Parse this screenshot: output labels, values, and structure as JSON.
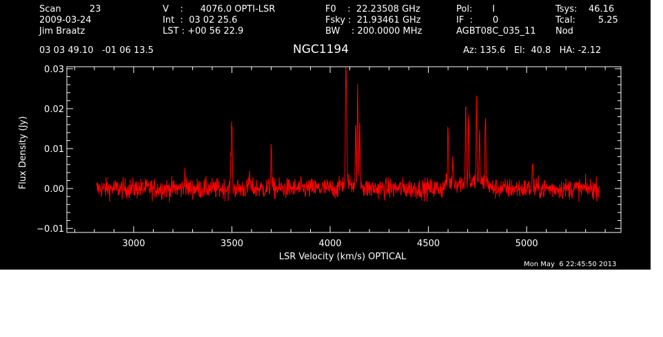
{
  "header": {
    "col1": [
      "Scan          23",
      "2009-03-24",
      "Jim Braatz"
    ],
    "col2": [
      "V    :      4076.0 OPTI-LSR",
      "Int  :  03 02 25.6",
      "LST : +00 56 22.9"
    ],
    "col3": [
      "F0    :  22.23508 GHz",
      "Fsky :  21.93461 GHz",
      "BW    : 200.0000 MHz"
    ],
    "col4": [
      "Pol:       I",
      "IF  :       0",
      "AGBT08C_035_11"
    ],
    "col5": [
      "Tsys:    46.16",
      "Tcal:        5.25",
      "Nod"
    ],
    "coords": "03 03 49.10   -01 06 13.5",
    "source": "NGC1194",
    "pointing": "Az: 135.6   El:  40.8   HA: -2.12",
    "timestamp": "Mon May  6 22:45:50 2013"
  },
  "colors": {
    "background": "#000000",
    "axes": "#ffffff",
    "trace": "#ff0000"
  },
  "chart_data": {
    "type": "line",
    "xlabel": "LSR Velocity (km/s) OPTICAL",
    "ylabel": "Flux Density (Jy)",
    "xlim": [
      2660,
      5480
    ],
    "ylim": [
      -0.011,
      0.0305
    ],
    "xticks": [
      3000,
      3500,
      4000,
      4500,
      5000
    ],
    "xtick_labels": [
      "3000",
      "3500",
      "4000",
      "4500",
      "5000"
    ],
    "yticks": [
      -0.01,
      0.0,
      0.01,
      0.02,
      0.03
    ],
    "ytick_labels": [
      "−0.01",
      "0.00",
      "0.01",
      "0.02",
      "0.03"
    ],
    "grid": false,
    "series": [
      {
        "x_range": [
          2810,
          5370
        ],
        "noise_rms": 0.0013,
        "features": [
          {
            "x": 3260,
            "peak": 0.004
          },
          {
            "x": 3495,
            "peak": 0.007
          },
          {
            "x": 3500,
            "peak": 0.0165
          },
          {
            "x": 3590,
            "peak": 0.004
          },
          {
            "x": 3700,
            "peak": 0.012
          },
          {
            "x": 4080,
            "peak": 0.029
          },
          {
            "x": 4085,
            "peak": 0.012
          },
          {
            "x": 4130,
            "peak": 0.014
          },
          {
            "x": 4140,
            "peak": 0.023
          },
          {
            "x": 4150,
            "peak": 0.0145
          },
          {
            "x": 4600,
            "peak": 0.0135
          },
          {
            "x": 4625,
            "peak": 0.006
          },
          {
            "x": 4690,
            "peak": 0.0195
          },
          {
            "x": 4705,
            "peak": 0.018
          },
          {
            "x": 4745,
            "peak": 0.0215
          },
          {
            "x": 4760,
            "peak": 0.012
          },
          {
            "x": 4790,
            "peak": 0.0175
          },
          {
            "x": 5030,
            "peak": 0.0065
          }
        ]
      }
    ]
  }
}
